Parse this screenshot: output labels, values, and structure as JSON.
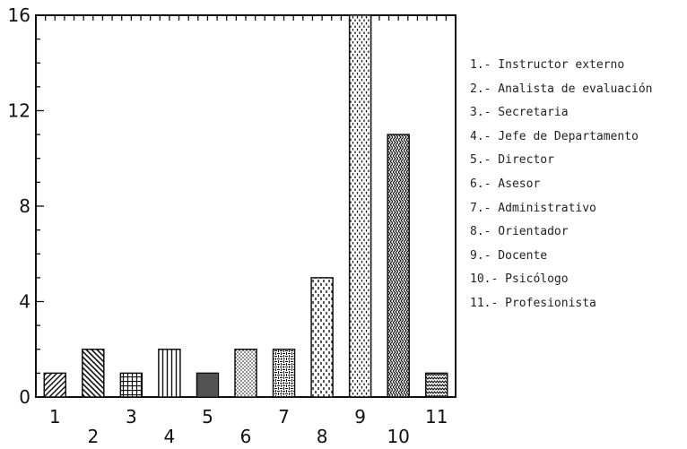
{
  "chart_data": {
    "type": "bar",
    "categories": [
      "1",
      "2",
      "3",
      "4",
      "5",
      "6",
      "7",
      "8",
      "9",
      "10",
      "11"
    ],
    "values": [
      1,
      2,
      1,
      2,
      1,
      2,
      2,
      5,
      16,
      11,
      1
    ],
    "ylim": [
      0,
      16
    ],
    "yticks": [
      "0",
      "4",
      "8",
      "12",
      "16"
    ],
    "grid": false,
    "legend_position": "right",
    "legend": [
      "1.- Instructor externo",
      "2.- Analista de evaluación",
      "3.- Secretaria",
      "4.- Jefe de Departamento",
      "5.- Director",
      "6.- Asesor",
      "7.- Administrativo",
      "8.- Orientador",
      "9.- Docente",
      "10.- Psicólogo",
      "11.- Profesionista"
    ],
    "colors": {
      "ink": "#111111",
      "background": "#ffffff"
    }
  }
}
